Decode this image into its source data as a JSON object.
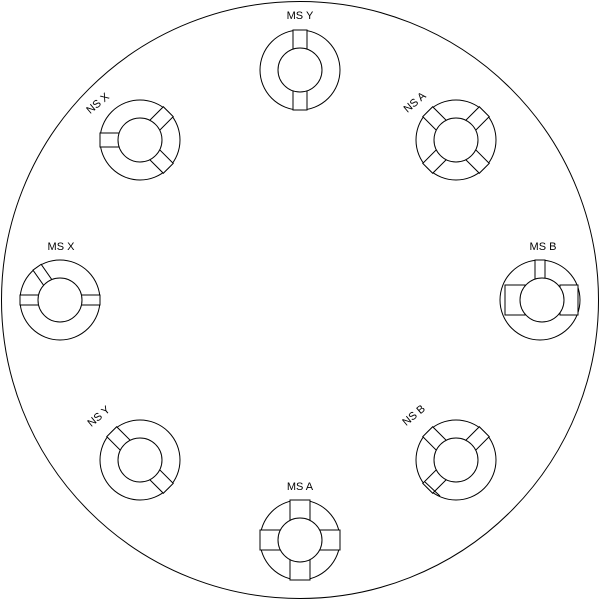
{
  "diagram": {
    "colors": {
      "stroke": "#000000",
      "fill": "#ffffff"
    },
    "labels": {
      "ms_y": "MS Y",
      "ns_a": "NS A",
      "ms_b": "MS B",
      "ns_b": "NS B",
      "ms_a": "MS A",
      "ns_y": "NS Y",
      "ms_x": "MS X",
      "ns_x": "NS X"
    }
  }
}
